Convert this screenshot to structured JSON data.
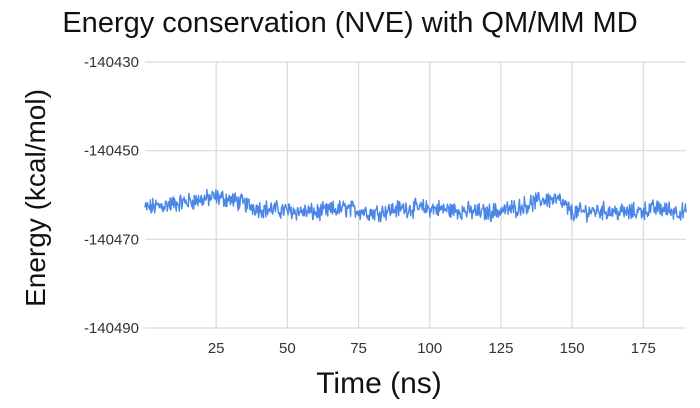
{
  "chart_data": {
    "type": "line",
    "title": "Energy conservation (NVE) with QM/MM MD",
    "xlabel": "Time (ns)",
    "ylabel": "Energy (kcal/mol)",
    "xlim": [
      0,
      190
    ],
    "ylim": [
      -140490,
      -140430
    ],
    "x_ticks": [
      25,
      50,
      75,
      100,
      125,
      150,
      175
    ],
    "y_ticks": [
      -140430,
      -140450,
      -140470,
      -140490
    ],
    "x_tick_labels": [
      "25",
      "50",
      "75",
      "100",
      "125",
      "150",
      "175"
    ],
    "y_tick_labels": [
      "-140430",
      "-140450",
      "-140470",
      "-140490"
    ],
    "grid": true,
    "legend": "none",
    "series": [
      {
        "color": "#4a86e8",
        "x": [
          0,
          10,
          20,
          25,
          30,
          40,
          50,
          60,
          70,
          80,
          90,
          100,
          110,
          120,
          130,
          140,
          145,
          150,
          160,
          170,
          180,
          190
        ],
        "y": [
          -140463,
          -140462,
          -140461,
          -140460.5,
          -140461,
          -140463,
          -140463.5,
          -140464,
          -140463,
          -140464,
          -140463,
          -140463,
          -140463.5,
          -140464,
          -140463,
          -140461,
          -140461,
          -140464,
          -140463.5,
          -140464,
          -140463,
          -140464
        ]
      }
    ]
  }
}
